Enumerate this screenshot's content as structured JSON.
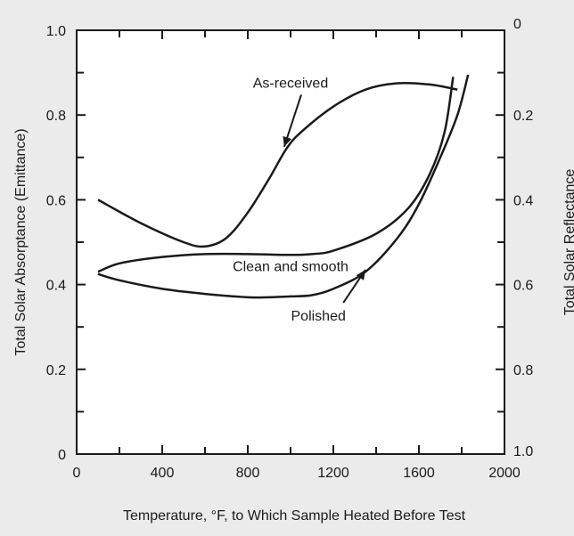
{
  "chart_data": {
    "type": "line",
    "title": "",
    "xlabel": "Temperature, °F, to Which Sample Heated Before Test",
    "ylabel": "Total Solar Absorptance (Emittance)",
    "y2label": "Total Solar Reflectance",
    "xlim": [
      0,
      2000
    ],
    "ylim": [
      0,
      1.0
    ],
    "y2lim": [
      0,
      1.0
    ],
    "y2_inverted": true,
    "grid": false,
    "x_ticks": [
      "0",
      "400",
      "800",
      "1200",
      "1600",
      "2000"
    ],
    "y_ticks": [
      "0",
      "0.2",
      "0.4",
      "0.6",
      "0.8",
      "1.0"
    ],
    "y2_ticks": [
      "0",
      "0.2",
      "0.4",
      "0.6",
      "0.8",
      "1.0"
    ],
    "series": [
      {
        "name": "As-received",
        "x": [
          100,
          300,
          500,
          600,
          700,
          800,
          900,
          980,
          1050,
          1200,
          1350,
          1500,
          1650,
          1780
        ],
        "y": [
          0.6,
          0.545,
          0.5,
          0.49,
          0.51,
          0.57,
          0.65,
          0.72,
          0.76,
          0.82,
          0.86,
          0.875,
          0.872,
          0.86
        ]
      },
      {
        "name": "Clean and smooth",
        "x": [
          100,
          200,
          400,
          600,
          800,
          1000,
          1100,
          1200,
          1400,
          1550,
          1650,
          1720,
          1760
        ],
        "y": [
          0.43,
          0.45,
          0.465,
          0.472,
          0.472,
          0.47,
          0.472,
          0.48,
          0.52,
          0.58,
          0.66,
          0.76,
          0.89
        ]
      },
      {
        "name": "Polished",
        "x": [
          100,
          200,
          400,
          600,
          800,
          900,
          1000,
          1100,
          1200,
          1350,
          1500,
          1600,
          1700,
          1780,
          1830
        ],
        "y": [
          0.425,
          0.41,
          0.39,
          0.378,
          0.37,
          0.37,
          0.372,
          0.375,
          0.39,
          0.43,
          0.51,
          0.59,
          0.7,
          0.8,
          0.895
        ]
      }
    ],
    "annotations": [
      {
        "text": "As-received",
        "label_x": 1000,
        "label_y": 0.865,
        "arrow_to_x": 970,
        "arrow_to_y": 0.725
      },
      {
        "text": "Clean and smooth",
        "label_x": 1000,
        "label_y": 0.432,
        "arrow_to_x": null,
        "arrow_to_y": null
      },
      {
        "text": "Polished",
        "label_x": 1130,
        "label_y": 0.315,
        "arrow_to_x": 1350,
        "arrow_to_y": 0.435
      }
    ]
  }
}
